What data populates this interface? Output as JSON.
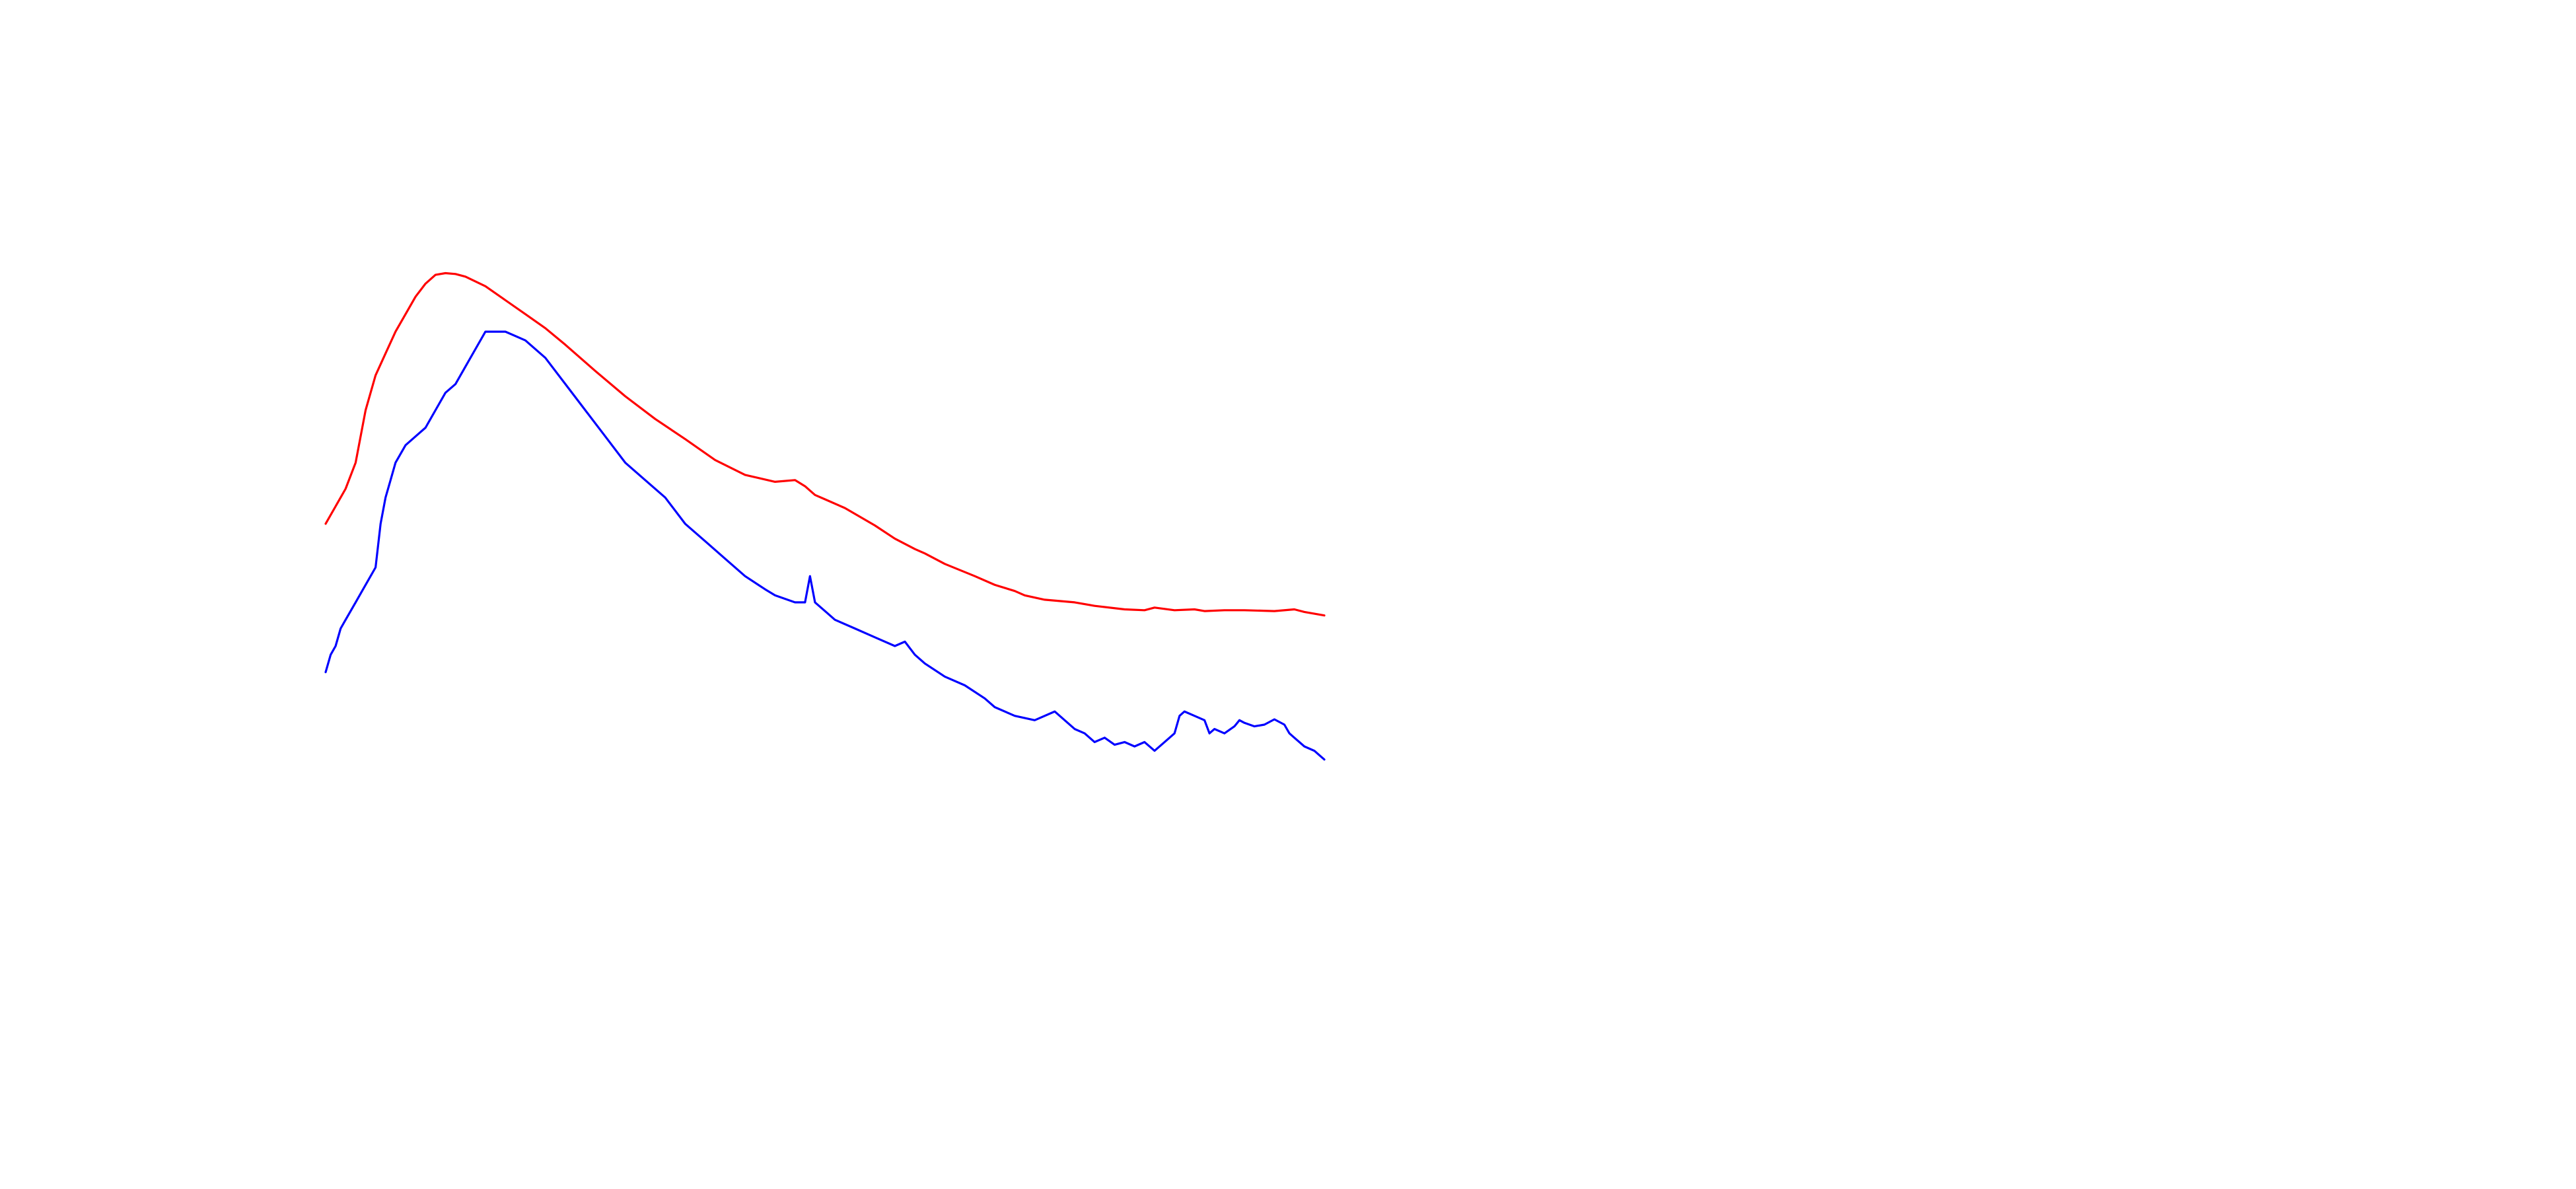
{
  "chart_data": {
    "type": "line",
    "title": "",
    "xlabel": "",
    "ylabel": "",
    "grid": false,
    "axes_visible": false,
    "legend": "none",
    "xlim": [
      0,
      100
    ],
    "ylim": [
      0,
      1
    ],
    "series": [
      {
        "color": "#ff0000",
        "x": [
          0,
          1,
          2,
          3,
          4,
          5,
          6,
          7,
          8,
          9,
          10,
          11,
          12,
          13,
          14,
          16,
          18,
          20,
          22,
          24,
          27,
          30,
          33,
          36,
          39,
          42,
          45,
          47,
          48,
          48.5,
          49,
          50,
          52,
          55,
          57,
          59,
          60,
          62,
          65,
          67,
          69,
          70,
          72,
          75,
          77,
          80,
          82,
          83,
          85,
          87,
          88,
          90,
          92,
          95,
          97,
          98,
          100
        ],
        "y": [
          0.55,
          0.57,
          0.59,
          0.62,
          0.68,
          0.72,
          0.745,
          0.77,
          0.79,
          0.81,
          0.825,
          0.835,
          0.837,
          0.836,
          0.833,
          0.822,
          0.806,
          0.79,
          0.774,
          0.755,
          0.725,
          0.696,
          0.67,
          0.647,
          0.623,
          0.606,
          0.598,
          0.6,
          0.593,
          0.588,
          0.583,
          0.578,
          0.568,
          0.548,
          0.533,
          0.521,
          0.516,
          0.504,
          0.49,
          0.48,
          0.473,
          0.468,
          0.463,
          0.46,
          0.456,
          0.452,
          0.451,
          0.454,
          0.451,
          0.452,
          0.45,
          0.451,
          0.451,
          0.45,
          0.452,
          0.449,
          0.445
        ]
      },
      {
        "color": "#0000ff",
        "x": [
          0,
          0.5,
          1,
          1.5,
          2,
          3,
          4,
          5,
          5.5,
          6,
          6.5,
          7,
          8,
          9,
          10,
          11,
          12,
          13,
          14,
          15,
          16,
          18,
          20,
          22,
          24,
          26,
          28,
          30,
          32,
          34,
          36,
          38,
          40,
          42,
          44,
          45,
          47,
          48,
          48.5,
          49,
          50,
          51,
          53,
          55,
          57,
          58,
          59,
          60,
          62,
          64,
          66,
          67,
          69,
          71,
          73,
          75,
          76,
          77,
          78,
          79,
          80,
          81,
          82,
          83,
          84,
          85,
          85.5,
          86,
          87,
          88,
          88.5,
          89,
          90,
          91,
          91.5,
          92,
          93,
          94,
          95,
          96,
          96.5,
          97,
          98,
          99,
          99.5,
          100
        ],
        "y": [
          0.38,
          0.4,
          0.41,
          0.43,
          0.44,
          0.46,
          0.48,
          0.5,
          0.55,
          0.58,
          0.6,
          0.62,
          0.64,
          0.65,
          0.66,
          0.68,
          0.7,
          0.71,
          0.73,
          0.75,
          0.77,
          0.77,
          0.76,
          0.74,
          0.71,
          0.68,
          0.65,
          0.62,
          0.6,
          0.58,
          0.55,
          0.53,
          0.51,
          0.49,
          0.475,
          0.468,
          0.46,
          0.46,
          0.49,
          0.46,
          0.45,
          0.44,
          0.43,
          0.42,
          0.41,
          0.415,
          0.4,
          0.39,
          0.375,
          0.365,
          0.35,
          0.34,
          0.33,
          0.325,
          0.335,
          0.315,
          0.31,
          0.3,
          0.305,
          0.297,
          0.3,
          0.295,
          0.3,
          0.29,
          0.3,
          0.31,
          0.33,
          0.335,
          0.33,
          0.325,
          0.31,
          0.315,
          0.31,
          0.318,
          0.325,
          0.322,
          0.318,
          0.32,
          0.326,
          0.32,
          0.31,
          0.305,
          0.295,
          0.29,
          0.285,
          0.28
        ]
      }
    ]
  }
}
